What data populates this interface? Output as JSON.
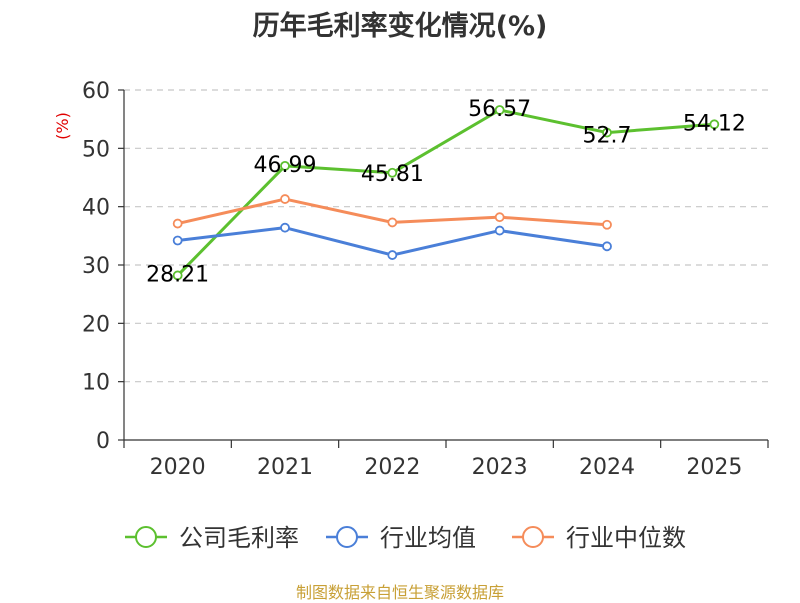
{
  "chart_data": {
    "type": "line",
    "title": "历年毛利率变化情况(%)",
    "ylabel": "(%)",
    "xlabel": "",
    "categories": [
      "2020",
      "2021",
      "2022",
      "2023",
      "2024",
      "2025"
    ],
    "ylim": [
      0,
      60
    ],
    "yticks": [
      0,
      10,
      20,
      30,
      40,
      50,
      60
    ],
    "grid": true,
    "legend_position": "bottom",
    "series": [
      {
        "name": "公司毛利率",
        "color": "#5cc02f",
        "values": [
          28.21,
          46.99,
          45.81,
          56.57,
          52.7,
          54.12
        ],
        "labels": [
          "28.21",
          "46.99",
          "45.81",
          "56.57",
          "52.7",
          "54.12"
        ]
      },
      {
        "name": "行业均值",
        "color": "#4a7fd8",
        "values": [
          34.2,
          36.4,
          31.7,
          35.9,
          33.2,
          null
        ]
      },
      {
        "name": "行业中位数",
        "color": "#f58c5a",
        "values": [
          37.1,
          41.3,
          37.3,
          38.2,
          36.9,
          null
        ]
      }
    ]
  },
  "source": "制图数据来自恒生聚源数据库"
}
